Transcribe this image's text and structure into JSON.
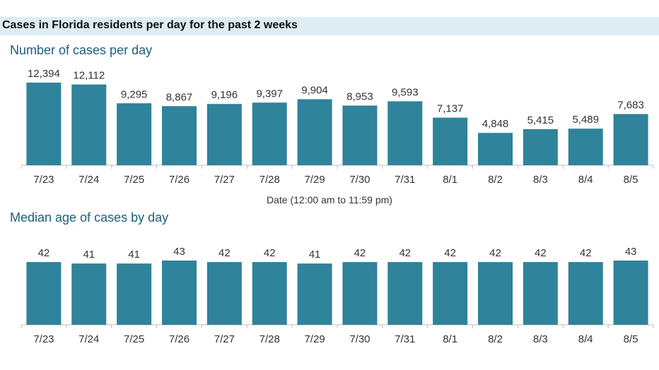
{
  "header": {
    "title": "Cases in Florida residents per day for the past 2 weeks"
  },
  "colors": {
    "bar": "#2f839a",
    "header_bg": "#dcedf3",
    "title": "#1c5f7a",
    "axis": "#bfbfbf",
    "label": "#333333"
  },
  "chart_data": [
    {
      "type": "bar",
      "title": "Number of cases per day",
      "xlabel": "Date (12:00 am to 11:59 pm)",
      "ylabel": "",
      "categories": [
        "7/23",
        "7/24",
        "7/25",
        "7/26",
        "7/27",
        "7/28",
        "7/29",
        "7/30",
        "7/31",
        "8/1",
        "8/2",
        "8/3",
        "8/4",
        "8/5"
      ],
      "values": [
        12394,
        12112,
        9295,
        8867,
        9196,
        9397,
        9904,
        8953,
        9593,
        7137,
        4848,
        5415,
        5489,
        7683
      ],
      "value_labels": [
        "12,394",
        "12,112",
        "9,295",
        "8,867",
        "9,196",
        "9,397",
        "9,904",
        "8,953",
        "9,593",
        "7,137",
        "4,848",
        "5,415",
        "5,489",
        "7,683"
      ],
      "ylim": [
        0,
        12394
      ],
      "grid": false
    },
    {
      "type": "bar",
      "title": "Median age of cases by day",
      "xlabel": "",
      "ylabel": "",
      "categories": [
        "7/23",
        "7/24",
        "7/25",
        "7/26",
        "7/27",
        "7/28",
        "7/29",
        "7/30",
        "7/31",
        "8/1",
        "8/2",
        "8/3",
        "8/4",
        "8/5"
      ],
      "values": [
        42,
        41,
        41,
        43,
        42,
        42,
        41,
        42,
        42,
        42,
        42,
        42,
        42,
        43
      ],
      "value_labels": [
        "42",
        "41",
        "41",
        "43",
        "42",
        "42",
        "41",
        "42",
        "42",
        "42",
        "42",
        "42",
        "42",
        "43"
      ],
      "ylim": [
        0,
        43
      ],
      "grid": false
    }
  ]
}
